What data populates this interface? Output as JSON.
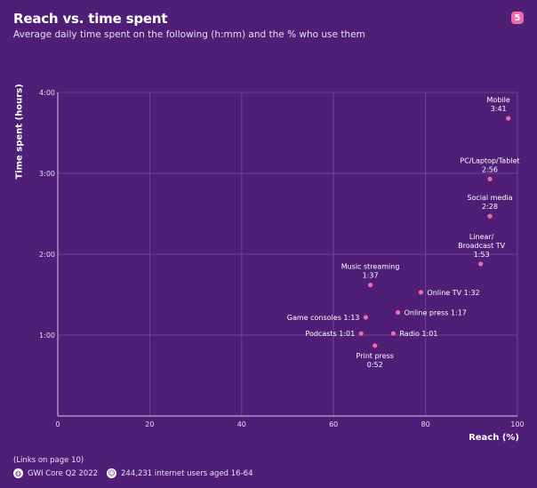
{
  "header": {
    "title": "Reach vs. time spent",
    "subtitle": "Average daily time spent on the following (h:mm) and the % who use them",
    "page_number": "5"
  },
  "footer": {
    "links_note": "(Links on page 10)",
    "source": "GWI Core Q2 2022",
    "sample": "244,231 internet users aged 16-64",
    "source_icon": "globe-icon",
    "sample_icon": "people-icon"
  },
  "colors": {
    "background": "#4f1f78",
    "point": "#f06aa8",
    "grid": "#6e4394",
    "axis": "#d8c8ea"
  },
  "chart_data": {
    "type": "scatter",
    "xlabel": "Reach (%)",
    "ylabel": "Time spent (hours)",
    "xlim": [
      0,
      100
    ],
    "ylim": [
      0,
      4
    ],
    "x_ticks": [
      "0",
      "20",
      "40",
      "60",
      "80",
      "100"
    ],
    "y_ticks": [
      "1:00",
      "2:00",
      "3:00",
      "4:00"
    ],
    "grid": true,
    "points": [
      {
        "label": "Mobile",
        "value": "3:41",
        "x": 98,
        "y": 3.68
      },
      {
        "label": "PC/Laptop/Tablet",
        "value": "2:56",
        "x": 94,
        "y": 2.93
      },
      {
        "label": "Social media",
        "value": "2:28",
        "x": 94,
        "y": 2.47
      },
      {
        "label": "Linear/ Broadcast TV",
        "value": "1:53",
        "x": 92,
        "y": 1.88
      },
      {
        "label": "Music streaming",
        "value": "1:37",
        "x": 68,
        "y": 1.62
      },
      {
        "label": "Online TV",
        "value": "1:32",
        "x": 79,
        "y": 1.53
      },
      {
        "label": "Online press",
        "value": "1:17",
        "x": 74,
        "y": 1.28
      },
      {
        "label": "Game consoles",
        "value": "1:13",
        "x": 67,
        "y": 1.22
      },
      {
        "label": "Podcasts",
        "value": "1:01",
        "x": 66,
        "y": 1.02
      },
      {
        "label": "Radio",
        "value": "1:01",
        "x": 73,
        "y": 1.02
      },
      {
        "label": "Print press",
        "value": "0:52",
        "x": 69,
        "y": 0.87
      }
    ]
  }
}
